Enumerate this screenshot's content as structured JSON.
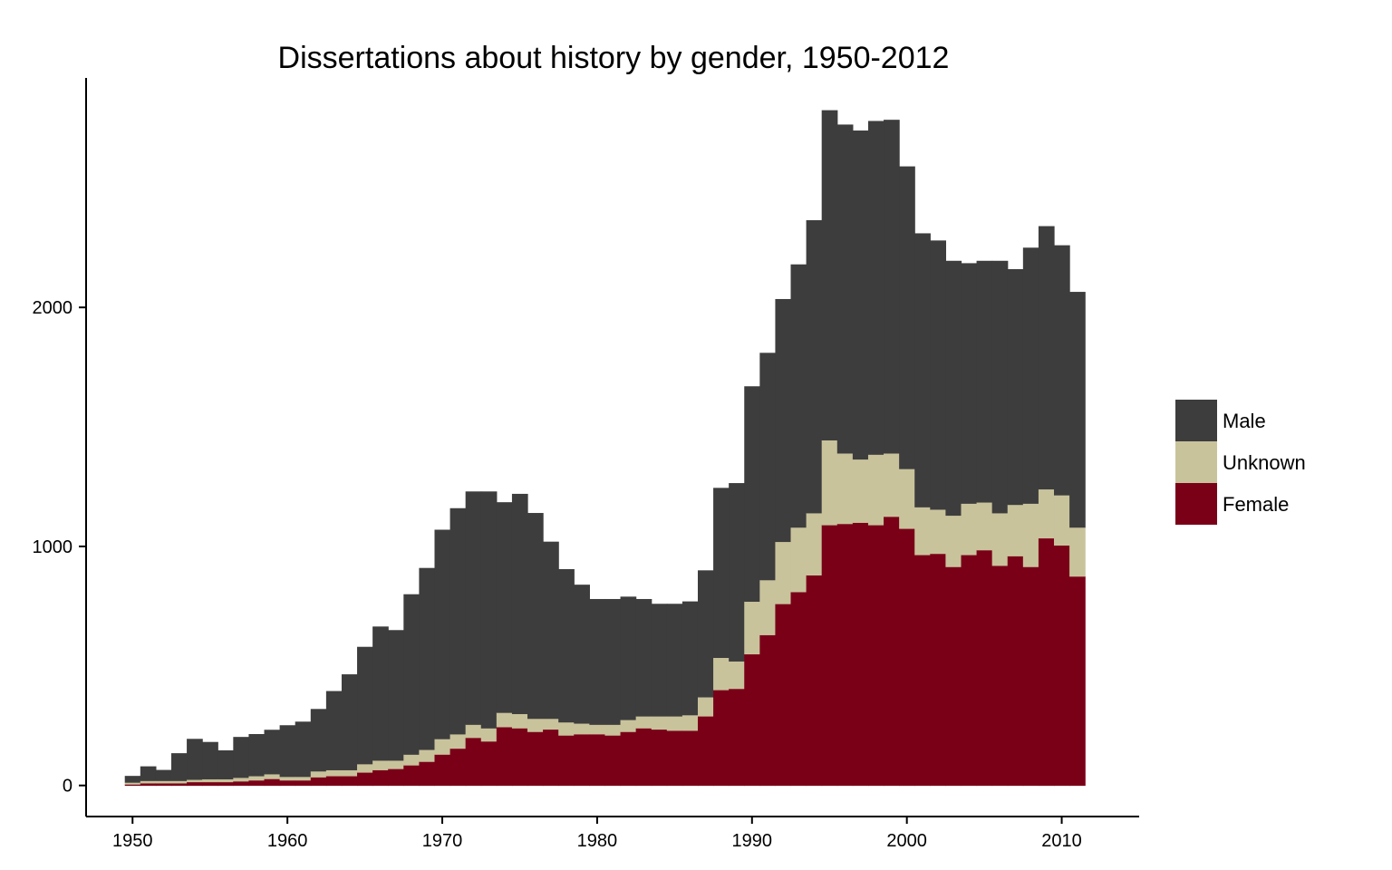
{
  "chart_data": {
    "type": "bar",
    "stacked": true,
    "title": "Dissertations about history by gender, 1950-2012",
    "xlabel": "",
    "ylabel": "",
    "xlim": [
      1947,
      2015
    ],
    "ylim": [
      -130,
      2960
    ],
    "x_ticks": [
      1950,
      1960,
      1970,
      1980,
      1990,
      2000,
      2010
    ],
    "y_ticks": [
      0,
      1000,
      2000
    ],
    "grid": false,
    "legend_position": "right",
    "x": [
      1950,
      1951,
      1952,
      1953,
      1954,
      1955,
      1956,
      1957,
      1958,
      1959,
      1960,
      1961,
      1962,
      1963,
      1964,
      1965,
      1966,
      1967,
      1968,
      1969,
      1970,
      1971,
      1972,
      1973,
      1974,
      1975,
      1976,
      1977,
      1978,
      1979,
      1980,
      1981,
      1982,
      1983,
      1984,
      1985,
      1986,
      1987,
      1988,
      1989,
      1990,
      1991,
      1992,
      1993,
      1994,
      1995,
      1996,
      1997,
      1998,
      1999,
      2000,
      2001,
      2002,
      2003,
      2004,
      2005,
      2006,
      2007,
      2008,
      2009,
      2010,
      2011
    ],
    "series": [
      {
        "name": "Female",
        "color": "#7a0018",
        "values": [
          5,
          10,
          10,
          10,
          15,
          15,
          15,
          18,
          22,
          28,
          22,
          22,
          35,
          40,
          40,
          55,
          65,
          70,
          85,
          100,
          130,
          155,
          200,
          185,
          245,
          240,
          225,
          235,
          210,
          215,
          215,
          210,
          225,
          240,
          235,
          230,
          230,
          290,
          400,
          405,
          550,
          630,
          760,
          810,
          880,
          1090,
          1095,
          1100,
          1090,
          1125,
          1075,
          965,
          970,
          915,
          965,
          985,
          920,
          960,
          915,
          1035,
          1005,
          875
        ]
      },
      {
        "name": "Unknown",
        "color": "#c9c39c",
        "values": [
          8,
          10,
          10,
          10,
          10,
          12,
          12,
          15,
          18,
          20,
          15,
          15,
          25,
          25,
          25,
          35,
          40,
          35,
          45,
          50,
          65,
          60,
          55,
          55,
          60,
          60,
          55,
          45,
          55,
          45,
          40,
          45,
          50,
          50,
          55,
          60,
          65,
          80,
          135,
          115,
          220,
          230,
          260,
          270,
          260,
          355,
          295,
          265,
          295,
          265,
          250,
          200,
          185,
          215,
          215,
          200,
          220,
          215,
          265,
          205,
          210,
          205
        ]
      },
      {
        "name": "Male",
        "color": "#3d3d3d",
        "values": [
          27,
          60,
          45,
          115,
          170,
          155,
          120,
          170,
          175,
          185,
          215,
          230,
          260,
          330,
          400,
          490,
          560,
          545,
          670,
          760,
          875,
          945,
          975,
          990,
          880,
          920,
          860,
          740,
          640,
          580,
          525,
          525,
          515,
          490,
          470,
          470,
          475,
          530,
          710,
          745,
          900,
          950,
          1015,
          1100,
          1225,
          1380,
          1375,
          1375,
          1395,
          1395,
          1265,
          1145,
          1125,
          1065,
          1005,
          1010,
          1055,
          985,
          1070,
          1100,
          1045,
          985
        ]
      }
    ]
  }
}
